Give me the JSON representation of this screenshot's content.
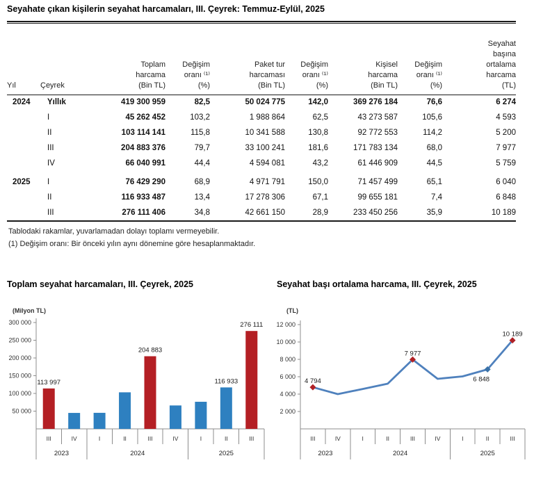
{
  "page": {
    "title": "Seyahate çıkan kişilerin seyahat harcamaları, III. Çeyrek: Temmuz-Eylül, 2025"
  },
  "colors": {
    "bar_red": "#b41f24",
    "bar_blue": "#2e80c0",
    "line": "#4f81bd",
    "marker_red": "#b02126",
    "marker_blue": "#3a72a8",
    "axis": "#8c8c8c",
    "text": "#333333",
    "label": "#1a1a1a"
  },
  "table": {
    "headers": [
      "Yıl",
      "Çeyrek",
      "Toplam\nharcama\n(Bin TL)",
      "Değişim\noranı ⁽¹⁾\n(%)",
      "Paket tur\nharcaması\n(Bin TL)",
      "Değişim\noranı ⁽¹⁾\n(%)",
      "Kişisel\nharcama\n(Bin TL)",
      "Değişim\noranı ⁽¹⁾\n(%)",
      "Seyahat\nbaşına\nortalama\nharcama\n(TL)"
    ],
    "rows": [
      {
        "c": [
          "2024",
          "Yıllık",
          "419 300 959",
          "82,5",
          "50 024 775",
          "142,0",
          "369 276 184",
          "76,6",
          "6 274"
        ]
      },
      {
        "c": [
          "",
          "I",
          "45 262 452",
          "103,2",
          "1 988 864",
          "62,5",
          "43 273 587",
          "105,6",
          "4 593"
        ]
      },
      {
        "c": [
          "",
          "II",
          "103 114 141",
          "115,8",
          "10 341 588",
          "130,8",
          "92 772 553",
          "114,2",
          "5 200"
        ]
      },
      {
        "c": [
          "",
          "III",
          "204 883 376",
          "79,7",
          "33 100 241",
          "181,6",
          "171 783 134",
          "68,0",
          "7 977"
        ]
      },
      {
        "c": [
          "",
          "IV",
          "66 040 991",
          "44,4",
          "4 594 081",
          "43,2",
          "61 446 909",
          "44,5",
          "5 759"
        ]
      },
      {
        "c": [
          "2025",
          "I",
          "76 429 290",
          "68,9",
          "4 971 791",
          "150,0",
          "71 457 499",
          "65,1",
          "6 040"
        ]
      },
      {
        "c": [
          "",
          "II",
          "116 933 487",
          "13,4",
          "17 278 306",
          "67,1",
          "99 655 181",
          "7,4",
          "6 848"
        ]
      },
      {
        "c": [
          "",
          "III",
          "276 111 406",
          "34,8",
          "42 661 150",
          "28,9",
          "233 450 256",
          "35,9",
          "10 189"
        ]
      }
    ]
  },
  "notes": [
    "Tablodaki rakamlar, yuvarlamadan dolayı toplamı vermeyebilir.",
    "(1) Değişim oranı: Bir önceki yılın aynı dönemine göre hesaplanmaktadır."
  ],
  "chart_data": [
    {
      "type": "bar",
      "title": "Toplam seyahat harcamaları, III. Çeyrek, 2025",
      "unit_label": "(Milyon TL)",
      "x_quarters": [
        "III",
        "IV",
        "I",
        "II",
        "III",
        "IV",
        "I",
        "II",
        "III"
      ],
      "year_groups": [
        {
          "label": "2023",
          "span": 2
        },
        {
          "label": "2024",
          "span": 4
        },
        {
          "label": "2025",
          "span": 3
        }
      ],
      "values": [
        113997,
        45000,
        45262,
        103114,
        204883,
        66041,
        76429,
        116933,
        276111
      ],
      "bar_colors": [
        "red",
        "blue",
        "blue",
        "blue",
        "red",
        "blue",
        "blue",
        "blue",
        "red"
      ],
      "data_labels": [
        {
          "index": 0,
          "text": "113 997"
        },
        {
          "index": 4,
          "text": "204 883"
        },
        {
          "index": 7,
          "text": "116 933"
        },
        {
          "index": 8,
          "text": "276 111"
        }
      ],
      "ylim": [
        0,
        300000
      ],
      "ytick_step": 50000,
      "ytick_labels": [
        "50 000",
        "100 000",
        "150 000",
        "200 000",
        "250 000",
        "300 000"
      ],
      "grid": false,
      "legend": false
    },
    {
      "type": "line",
      "title": "Seyahat başı ortalama harcama, III. Çeyrek, 2025",
      "unit_label": "(TL)",
      "x_quarters": [
        "III",
        "IV",
        "I",
        "II",
        "III",
        "IV",
        "I",
        "II",
        "III"
      ],
      "year_groups": [
        {
          "label": "2023",
          "span": 2
        },
        {
          "label": "2024",
          "span": 4
        },
        {
          "label": "2025",
          "span": 3
        }
      ],
      "values": [
        4794,
        4000,
        4593,
        5200,
        7977,
        5759,
        6040,
        6848,
        10189
      ],
      "markers": [
        {
          "index": 0,
          "color": "red"
        },
        {
          "index": 4,
          "color": "red"
        },
        {
          "index": 7,
          "color": "blue"
        },
        {
          "index": 8,
          "color": "red"
        }
      ],
      "data_labels": [
        {
          "index": 0,
          "text": "4 794",
          "pos": "above"
        },
        {
          "index": 4,
          "text": "7 977",
          "pos": "above"
        },
        {
          "index": 7,
          "text": "6 848",
          "pos": "below"
        },
        {
          "index": 8,
          "text": "10 189",
          "pos": "above"
        }
      ],
      "ylim": [
        0,
        12000
      ],
      "ytick_step": 2000,
      "ytick_labels": [
        "2 000",
        "4 000",
        "6 000",
        "8 000",
        "10 000",
        "12 000"
      ],
      "grid": false,
      "legend": false
    }
  ]
}
